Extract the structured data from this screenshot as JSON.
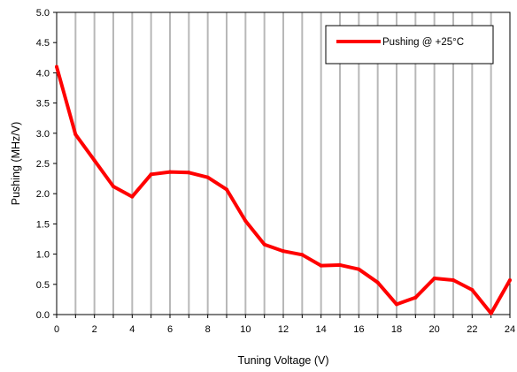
{
  "chart_data": {
    "type": "line",
    "title": "",
    "xlabel": "Tuning Voltage (V)",
    "ylabel": "Pushing (MHz/V)",
    "xlim": [
      0,
      24
    ],
    "ylim": [
      0,
      5
    ],
    "x_ticks": [
      "0",
      "2",
      "4",
      "6",
      "8",
      "10",
      "12",
      "14",
      "16",
      "18",
      "20",
      "22",
      "24"
    ],
    "y_ticks": [
      "0.0",
      "0.5",
      "1.0",
      "1.5",
      "2.0",
      "2.5",
      "3.0",
      "3.5",
      "4.0",
      "4.5",
      "5.0"
    ],
    "vertical_grid": true,
    "horizontal_grid": false,
    "legend_position": "top-right",
    "series": [
      {
        "name": "Pushing @ +25°C",
        "color": "#ff0000",
        "x": [
          0,
          1,
          2,
          3,
          4,
          5,
          6,
          7,
          8,
          9,
          10,
          11,
          12,
          13,
          14,
          15,
          16,
          17,
          18,
          19,
          20,
          21,
          22,
          23,
          24
        ],
        "y": [
          4.1,
          2.98,
          2.55,
          2.12,
          1.95,
          2.32,
          2.36,
          2.35,
          2.27,
          2.07,
          1.55,
          1.16,
          1.05,
          0.99,
          0.81,
          0.82,
          0.75,
          0.53,
          0.17,
          0.28,
          0.6,
          0.57,
          0.41,
          0.02,
          0.57
        ]
      }
    ]
  }
}
